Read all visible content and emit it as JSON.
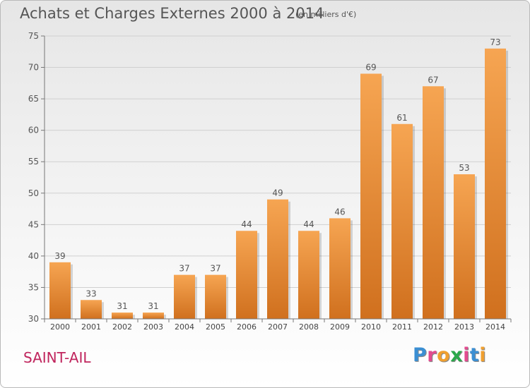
{
  "header": {
    "title": "Achats et Charges Externes 2000 à 2014",
    "subtitle": "(en milliers d'€)"
  },
  "footer": {
    "town": "SAINT-AIL",
    "logo": "Proxiti",
    "logo_letters": [
      {
        "char": "P",
        "color": "#3b8fd3"
      },
      {
        "char": "r",
        "color": "#e24b8f"
      },
      {
        "char": "o",
        "color": "#f0a030"
      },
      {
        "char": "x",
        "color": "#2aa84a"
      },
      {
        "char": "i",
        "color": "#e24b8f"
      },
      {
        "char": "t",
        "color": "#3b8fd3"
      },
      {
        "char": "i",
        "color": "#f0a030"
      }
    ]
  },
  "chart_data": {
    "type": "bar",
    "categories": [
      "2000",
      "2001",
      "2002",
      "2003",
      "2004",
      "2005",
      "2006",
      "2007",
      "2008",
      "2009",
      "2010",
      "2011",
      "2012",
      "2013",
      "2014"
    ],
    "values": [
      39,
      33,
      31,
      31,
      37,
      37,
      44,
      49,
      44,
      46,
      69,
      61,
      67,
      53,
      73
    ],
    "ylim": [
      30,
      75
    ],
    "yticks": [
      30,
      35,
      40,
      45,
      50,
      55,
      60,
      65,
      70,
      75
    ],
    "grid": true,
    "bar_color_top": "#f6a552",
    "bar_color_bottom": "#d0701e"
  }
}
